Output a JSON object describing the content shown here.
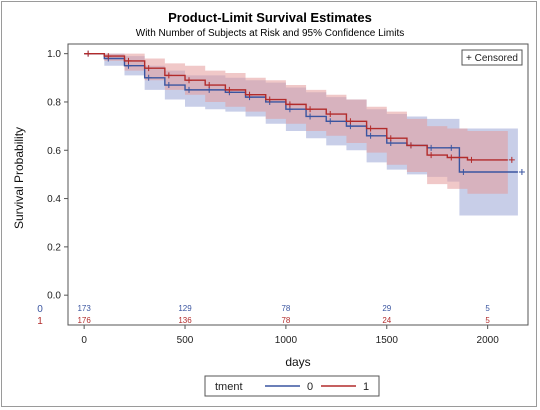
{
  "title": "Product-Limit Survival Estimates",
  "subtitle": "With Number of Subjects at Risk and 95% Confidence Limits",
  "colors": {
    "group0": "#3a55a0",
    "group1": "#b22b2b",
    "band0": "#9aa5d6",
    "band1": "#e39a9a"
  },
  "chart_data": {
    "type": "line",
    "title": "Product-Limit Survival Estimates",
    "subtitle": "With Number of Subjects at Risk and 95% Confidence Limits",
    "xlabel": "days",
    "ylabel": "Survival Probability",
    "xlim": [
      -80,
      2200
    ],
    "ylim": [
      -0.02,
      1.04
    ],
    "xticks": [
      "0",
      "500",
      "1000",
      "1500",
      "2000"
    ],
    "yticks": [
      "0.0",
      "0.2",
      "0.4",
      "0.6",
      "0.8",
      "1.0"
    ],
    "censored_label": "+ Censored",
    "legend_title": "tment",
    "legend_position": "bottom",
    "series": [
      {
        "name": "0",
        "x": [
          0,
          100,
          200,
          300,
          400,
          500,
          600,
          700,
          800,
          900,
          1000,
          1100,
          1200,
          1300,
          1400,
          1500,
          1600,
          1700,
          1800,
          1860,
          2150
        ],
        "y": [
          1.0,
          0.98,
          0.95,
          0.9,
          0.87,
          0.85,
          0.85,
          0.84,
          0.82,
          0.8,
          0.77,
          0.74,
          0.72,
          0.7,
          0.66,
          0.63,
          0.62,
          0.61,
          0.61,
          0.51,
          0.51
        ],
        "ci_lower": [
          1.0,
          0.95,
          0.91,
          0.85,
          0.81,
          0.78,
          0.77,
          0.76,
          0.74,
          0.71,
          0.68,
          0.65,
          0.62,
          0.6,
          0.55,
          0.52,
          0.5,
          0.49,
          0.47,
          0.33,
          0.32
        ],
        "ci_upper": [
          1.0,
          1.0,
          0.99,
          0.95,
          0.93,
          0.91,
          0.91,
          0.9,
          0.89,
          0.88,
          0.86,
          0.84,
          0.82,
          0.81,
          0.77,
          0.75,
          0.74,
          0.73,
          0.73,
          0.69,
          0.68
        ],
        "at_risk": [
          173,
          129,
          78,
          29,
          5
        ]
      },
      {
        "name": "1",
        "x": [
          0,
          100,
          200,
          300,
          400,
          500,
          600,
          700,
          800,
          900,
          1000,
          1100,
          1200,
          1300,
          1400,
          1500,
          1600,
          1700,
          1800,
          1900,
          2100
        ],
        "y": [
          1.0,
          0.99,
          0.97,
          0.94,
          0.91,
          0.89,
          0.87,
          0.85,
          0.83,
          0.81,
          0.79,
          0.77,
          0.75,
          0.72,
          0.69,
          0.65,
          0.62,
          0.58,
          0.57,
          0.56,
          0.56
        ],
        "ci_lower": [
          1.0,
          0.97,
          0.93,
          0.89,
          0.85,
          0.83,
          0.8,
          0.78,
          0.76,
          0.73,
          0.71,
          0.68,
          0.66,
          0.63,
          0.59,
          0.54,
          0.51,
          0.46,
          0.44,
          0.42,
          0.42
        ],
        "ci_upper": [
          1.0,
          1.0,
          1.0,
          0.98,
          0.96,
          0.95,
          0.93,
          0.92,
          0.9,
          0.89,
          0.87,
          0.85,
          0.83,
          0.81,
          0.78,
          0.76,
          0.73,
          0.7,
          0.69,
          0.68,
          0.68
        ],
        "at_risk": [
          176,
          136,
          78,
          24,
          5
        ]
      }
    ],
    "at_risk_times": [
      0,
      500,
      1000,
      1500,
      2000
    ],
    "grid": false
  }
}
